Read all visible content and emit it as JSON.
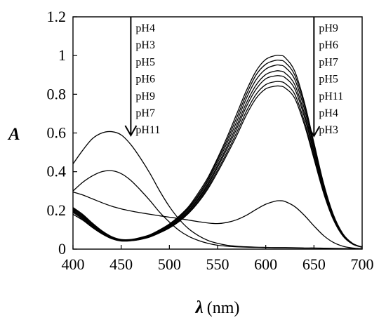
{
  "chart_data": {
    "type": "line",
    "xlabel_symbol": "λ",
    "xlabel_unit": "(nm)",
    "ylabel": "A",
    "xlim": [
      400,
      700
    ],
    "ylim": [
      0,
      1.2
    ],
    "x_ticks": [
      400,
      450,
      500,
      550,
      600,
      650,
      700
    ],
    "y_ticks": [
      0,
      0.2,
      0.4,
      0.6,
      0.8,
      1,
      1.2
    ],
    "y_tick_labels": [
      "0",
      "0.2",
      "0.4",
      "0.6",
      "0.8",
      "1",
      "1.2"
    ],
    "annotations": [
      {
        "position": "left-arrow",
        "arrow_x": 460,
        "labels": [
          "pH4",
          "pH3",
          "pH5",
          "pH6",
          "pH9",
          "pH7",
          "pH11"
        ]
      },
      {
        "position": "right-arrow",
        "arrow_x": 650,
        "labels": [
          "pH9",
          "pH6",
          "pH7",
          "pH5",
          "pH11",
          "pH4",
          "pH3"
        ]
      }
    ],
    "series": [
      {
        "x": [
          400,
          410,
          420,
          430,
          440,
          450,
          460,
          470,
          480,
          490,
          500,
          510,
          520,
          530,
          540,
          550,
          560,
          570,
          580,
          590,
          600,
          610,
          615,
          620,
          630,
          640,
          650,
          660,
          670,
          680,
          690,
          700
        ],
        "y": [
          0.215,
          0.18,
          0.135,
          0.095,
          0.065,
          0.05,
          0.05,
          0.06,
          0.075,
          0.1,
          0.13,
          0.17,
          0.22,
          0.29,
          0.37,
          0.47,
          0.58,
          0.7,
          0.82,
          0.92,
          0.98,
          1.0,
          1.0,
          0.99,
          0.92,
          0.76,
          0.55,
          0.34,
          0.18,
          0.08,
          0.03,
          0.01
        ]
      },
      {
        "x": [
          400,
          410,
          420,
          430,
          440,
          450,
          460,
          470,
          480,
          490,
          500,
          510,
          520,
          530,
          540,
          550,
          560,
          570,
          580,
          590,
          600,
          610,
          615,
          620,
          630,
          640,
          650,
          660,
          670,
          680,
          690,
          700
        ],
        "y": [
          0.21,
          0.175,
          0.13,
          0.092,
          0.063,
          0.048,
          0.049,
          0.058,
          0.073,
          0.097,
          0.126,
          0.165,
          0.214,
          0.28,
          0.36,
          0.46,
          0.565,
          0.68,
          0.8,
          0.9,
          0.955,
          0.975,
          0.975,
          0.965,
          0.9,
          0.745,
          0.54,
          0.335,
          0.177,
          0.078,
          0.03,
          0.01
        ]
      },
      {
        "x": [
          400,
          410,
          420,
          430,
          440,
          450,
          460,
          470,
          480,
          490,
          500,
          510,
          520,
          530,
          540,
          550,
          560,
          570,
          580,
          590,
          600,
          610,
          615,
          620,
          630,
          640,
          650,
          660,
          670,
          680,
          690,
          700
        ],
        "y": [
          0.205,
          0.17,
          0.127,
          0.09,
          0.061,
          0.046,
          0.047,
          0.056,
          0.071,
          0.094,
          0.122,
          0.16,
          0.208,
          0.272,
          0.35,
          0.447,
          0.55,
          0.66,
          0.78,
          0.875,
          0.93,
          0.95,
          0.95,
          0.94,
          0.878,
          0.725,
          0.527,
          0.327,
          0.173,
          0.077,
          0.03,
          0.01
        ]
      },
      {
        "x": [
          400,
          410,
          420,
          430,
          440,
          450,
          460,
          470,
          480,
          490,
          500,
          510,
          520,
          530,
          540,
          550,
          560,
          570,
          580,
          590,
          600,
          610,
          615,
          620,
          630,
          640,
          650,
          660,
          670,
          680,
          690,
          700
        ],
        "y": [
          0.2,
          0.165,
          0.123,
          0.087,
          0.059,
          0.045,
          0.046,
          0.054,
          0.069,
          0.091,
          0.118,
          0.155,
          0.201,
          0.263,
          0.339,
          0.433,
          0.533,
          0.64,
          0.756,
          0.848,
          0.902,
          0.92,
          0.92,
          0.91,
          0.851,
          0.702,
          0.51,
          0.317,
          0.168,
          0.075,
          0.029,
          0.01
        ]
      },
      {
        "x": [
          400,
          410,
          420,
          430,
          440,
          450,
          460,
          470,
          480,
          490,
          500,
          510,
          520,
          530,
          540,
          550,
          560,
          570,
          580,
          590,
          600,
          610,
          615,
          620,
          630,
          640,
          650,
          660,
          670,
          680,
          690,
          700
        ],
        "y": [
          0.195,
          0.16,
          0.12,
          0.085,
          0.058,
          0.044,
          0.045,
          0.053,
          0.067,
          0.089,
          0.115,
          0.151,
          0.196,
          0.256,
          0.33,
          0.422,
          0.52,
          0.623,
          0.737,
          0.826,
          0.88,
          0.895,
          0.895,
          0.886,
          0.829,
          0.684,
          0.497,
          0.309,
          0.164,
          0.073,
          0.028,
          0.01
        ]
      },
      {
        "x": [
          400,
          410,
          420,
          430,
          440,
          450,
          460,
          470,
          480,
          490,
          500,
          510,
          520,
          530,
          540,
          550,
          560,
          570,
          580,
          590,
          600,
          610,
          615,
          620,
          630,
          640,
          650,
          660,
          670,
          680,
          690,
          700
        ],
        "y": [
          0.19,
          0.155,
          0.116,
          0.082,
          0.056,
          0.043,
          0.044,
          0.051,
          0.065,
          0.086,
          0.112,
          0.146,
          0.19,
          0.248,
          0.32,
          0.408,
          0.503,
          0.604,
          0.713,
          0.8,
          0.85,
          0.865,
          0.865,
          0.856,
          0.801,
          0.661,
          0.48,
          0.298,
          0.158,
          0.07,
          0.027,
          0.01
        ]
      },
      {
        "x": [
          400,
          410,
          420,
          430,
          440,
          450,
          460,
          470,
          480,
          490,
          500,
          510,
          520,
          530,
          540,
          550,
          560,
          570,
          580,
          590,
          600,
          610,
          615,
          620,
          630,
          640,
          650,
          660,
          670,
          680,
          690,
          700
        ],
        "y": [
          0.18,
          0.15,
          0.112,
          0.079,
          0.054,
          0.042,
          0.043,
          0.05,
          0.063,
          0.084,
          0.109,
          0.142,
          0.185,
          0.241,
          0.311,
          0.397,
          0.49,
          0.588,
          0.694,
          0.779,
          0.828,
          0.842,
          0.842,
          0.833,
          0.78,
          0.644,
          0.467,
          0.29,
          0.154,
          0.068,
          0.026,
          0.01
        ]
      },
      {
        "x": [
          400,
          410,
          420,
          430,
          440,
          450,
          460,
          470,
          480,
          490,
          500,
          510,
          520,
          530,
          540,
          550,
          560,
          570,
          580,
          590,
          600,
          610,
          620,
          630,
          640,
          650,
          660,
          670,
          680,
          690,
          700
        ],
        "y": [
          0.44,
          0.51,
          0.57,
          0.6,
          0.607,
          0.59,
          0.54,
          0.47,
          0.39,
          0.3,
          0.22,
          0.155,
          0.105,
          0.07,
          0.045,
          0.03,
          0.02,
          0.015,
          0.012,
          0.01,
          0.009,
          0.008,
          0.008,
          0.007,
          0.006,
          0.006,
          0.005,
          0.004,
          0.003,
          0.002,
          0.002
        ]
      },
      {
        "x": [
          400,
          410,
          420,
          430,
          440,
          450,
          460,
          470,
          480,
          490,
          500,
          510,
          520,
          530,
          540,
          550,
          560,
          570,
          580,
          590,
          600,
          610,
          620,
          630,
          640,
          650,
          660,
          670,
          680,
          690,
          700
        ],
        "y": [
          0.3,
          0.345,
          0.378,
          0.4,
          0.405,
          0.39,
          0.355,
          0.305,
          0.25,
          0.19,
          0.14,
          0.097,
          0.066,
          0.045,
          0.03,
          0.02,
          0.015,
          0.012,
          0.01,
          0.009,
          0.008,
          0.007,
          0.007,
          0.006,
          0.005,
          0.005,
          0.004,
          0.003,
          0.002,
          0.002,
          0.002
        ]
      },
      {
        "x": [
          400,
          410,
          420,
          430,
          440,
          450,
          460,
          470,
          480,
          490,
          500,
          510,
          520,
          530,
          540,
          550,
          560,
          570,
          580,
          590,
          600,
          610,
          615,
          620,
          630,
          640,
          650,
          660,
          670,
          680,
          690,
          700
        ],
        "y": [
          0.295,
          0.28,
          0.26,
          0.24,
          0.222,
          0.208,
          0.197,
          0.188,
          0.18,
          0.172,
          0.165,
          0.158,
          0.15,
          0.142,
          0.135,
          0.132,
          0.138,
          0.152,
          0.175,
          0.205,
          0.232,
          0.248,
          0.25,
          0.246,
          0.22,
          0.175,
          0.12,
          0.07,
          0.035,
          0.015,
          0.006,
          0.002
        ]
      }
    ]
  }
}
